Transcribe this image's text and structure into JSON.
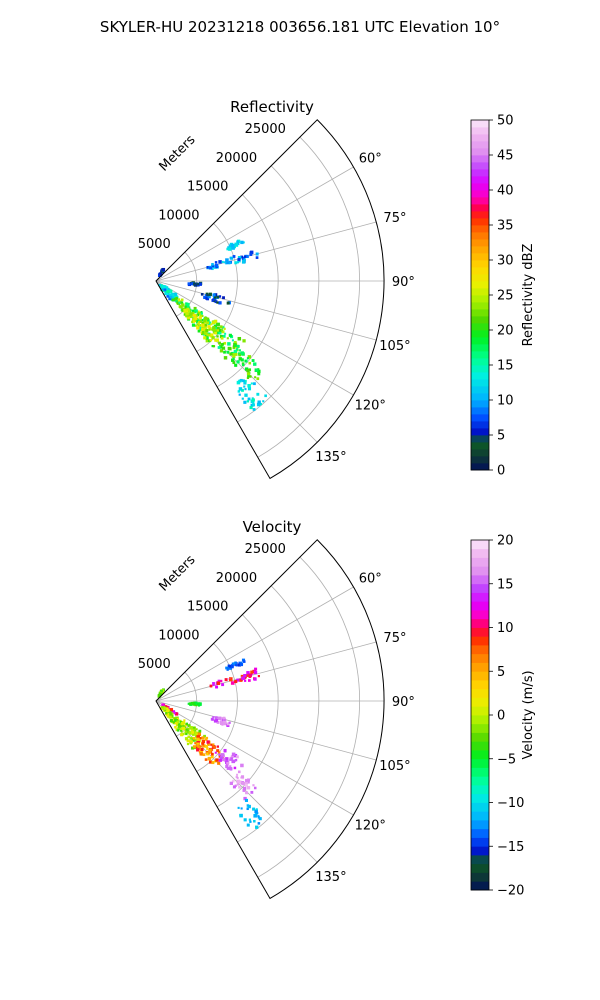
{
  "figure": {
    "title": "SKYLER-HU  20231218  003656.181 UTC Elevation 10°"
  },
  "chart_data": [
    {
      "type": "ppi",
      "title": "Reflectivity",
      "range_label": "Meters",
      "azimuth_range": [
        45,
        150
      ],
      "azimuth_ticks": [
        60,
        75,
        90,
        105,
        120,
        135
      ],
      "azimuth_tick_labels": [
        "60°",
        "75°",
        "90°",
        "105°",
        "120°",
        "135°"
      ],
      "range_max": 28000,
      "range_ticks": [
        5000,
        10000,
        15000,
        20000,
        25000
      ],
      "range_tick_labels": [
        "5000",
        "10000",
        "15000",
        "20000",
        "25000"
      ],
      "grid": true,
      "colorbar": {
        "label": "Reflectivity dBZ",
        "vmin": 0,
        "vmax": 50,
        "ticks": [
          0,
          5,
          10,
          15,
          20,
          25,
          30,
          35,
          40,
          45,
          50
        ],
        "tick_labels": [
          "0",
          "5",
          "10",
          "15",
          "20",
          "25",
          "30",
          "35",
          "40",
          "45",
          "50"
        ]
      },
      "echo_regions": [
        {
          "az": [
            122,
            144
          ],
          "r": [
            600,
            3500
          ],
          "value": [
            8,
            16
          ]
        },
        {
          "az": [
            124,
            140
          ],
          "r": [
            3000,
            13500
          ],
          "value": [
            15,
            27
          ]
        },
        {
          "az": [
            128,
            139
          ],
          "r": [
            5000,
            10000
          ],
          "value": [
            22,
            28
          ]
        },
        {
          "az": [
            129,
            137
          ],
          "r": [
            12500,
            17500
          ],
          "value": [
            16,
            24
          ]
        },
        {
          "az": [
            136,
            144
          ],
          "r": [
            16000,
            20000
          ],
          "value": [
            10,
            15
          ]
        },
        {
          "az": [
            103,
            110
          ],
          "r": [
            5500,
            9500
          ],
          "value": [
            3,
            10
          ]
        },
        {
          "az": [
            72,
            78
          ],
          "r": [
            6500,
            13000
          ],
          "value": [
            6,
            13
          ]
        },
        {
          "az": [
            64,
            67
          ],
          "r": [
            9500,
            12000
          ],
          "value": [
            10,
            14
          ]
        },
        {
          "az": [
            93,
            96
          ],
          "r": [
            4000,
            5500
          ],
          "value": [
            3,
            8
          ]
        },
        {
          "az": [
            30,
            36
          ],
          "r": [
            700,
            1700
          ],
          "value": [
            4,
            9
          ]
        }
      ]
    },
    {
      "type": "ppi",
      "title": "Velocity",
      "range_label": "Meters",
      "azimuth_range": [
        45,
        150
      ],
      "azimuth_ticks": [
        60,
        75,
        90,
        105,
        120,
        135
      ],
      "azimuth_tick_labels": [
        "60°",
        "75°",
        "90°",
        "105°",
        "120°",
        "135°"
      ],
      "range_max": 28000,
      "range_ticks": [
        5000,
        10000,
        15000,
        20000,
        25000
      ],
      "range_tick_labels": [
        "5000",
        "10000",
        "15000",
        "20000",
        "25000"
      ],
      "grid": true,
      "colorbar": {
        "label": "Velocity (m/s)",
        "vmin": -20,
        "vmax": 20,
        "ticks": [
          -20,
          -15,
          -10,
          -5,
          0,
          5,
          10,
          15,
          20
        ],
        "tick_labels": [
          "−20",
          "−15",
          "−10",
          "−5",
          "0",
          "5",
          "10",
          "15",
          "20"
        ]
      },
      "echo_regions": [
        {
          "az": [
            118,
            126
          ],
          "r": [
            800,
            3000
          ],
          "value": [
            8,
            14
          ]
        },
        {
          "az": [
            124,
            144
          ],
          "r": [
            1000,
            7500
          ],
          "value": [
            -4,
            2
          ]
        },
        {
          "az": [
            126,
            140
          ],
          "r": [
            6500,
            11000
          ],
          "value": [
            3,
            10
          ]
        },
        {
          "az": [
            124,
            134
          ],
          "r": [
            9500,
            13500
          ],
          "value": [
            13,
            18
          ]
        },
        {
          "az": [
            130,
            138
          ],
          "r": [
            13000,
            16500
          ],
          "value": [
            15,
            19
          ]
        },
        {
          "az": [
            137,
            144
          ],
          "r": [
            16500,
            20000
          ],
          "value": [
            -13,
            -10
          ]
        },
        {
          "az": [
            104,
            110
          ],
          "r": [
            7000,
            9500
          ],
          "value": [
            14,
            18
          ]
        },
        {
          "az": [
            72,
            78
          ],
          "r": [
            6500,
            13000
          ],
          "value": [
            8,
            14
          ]
        },
        {
          "az": [
            64,
            67
          ],
          "r": [
            9500,
            12000
          ],
          "value": [
            -15,
            -12
          ]
        },
        {
          "az": [
            93,
            96
          ],
          "r": [
            4000,
            5500
          ],
          "value": [
            -6,
            -3
          ]
        },
        {
          "az": [
            30,
            36
          ],
          "r": [
            700,
            1700
          ],
          "value": [
            -4,
            0
          ]
        }
      ]
    }
  ]
}
